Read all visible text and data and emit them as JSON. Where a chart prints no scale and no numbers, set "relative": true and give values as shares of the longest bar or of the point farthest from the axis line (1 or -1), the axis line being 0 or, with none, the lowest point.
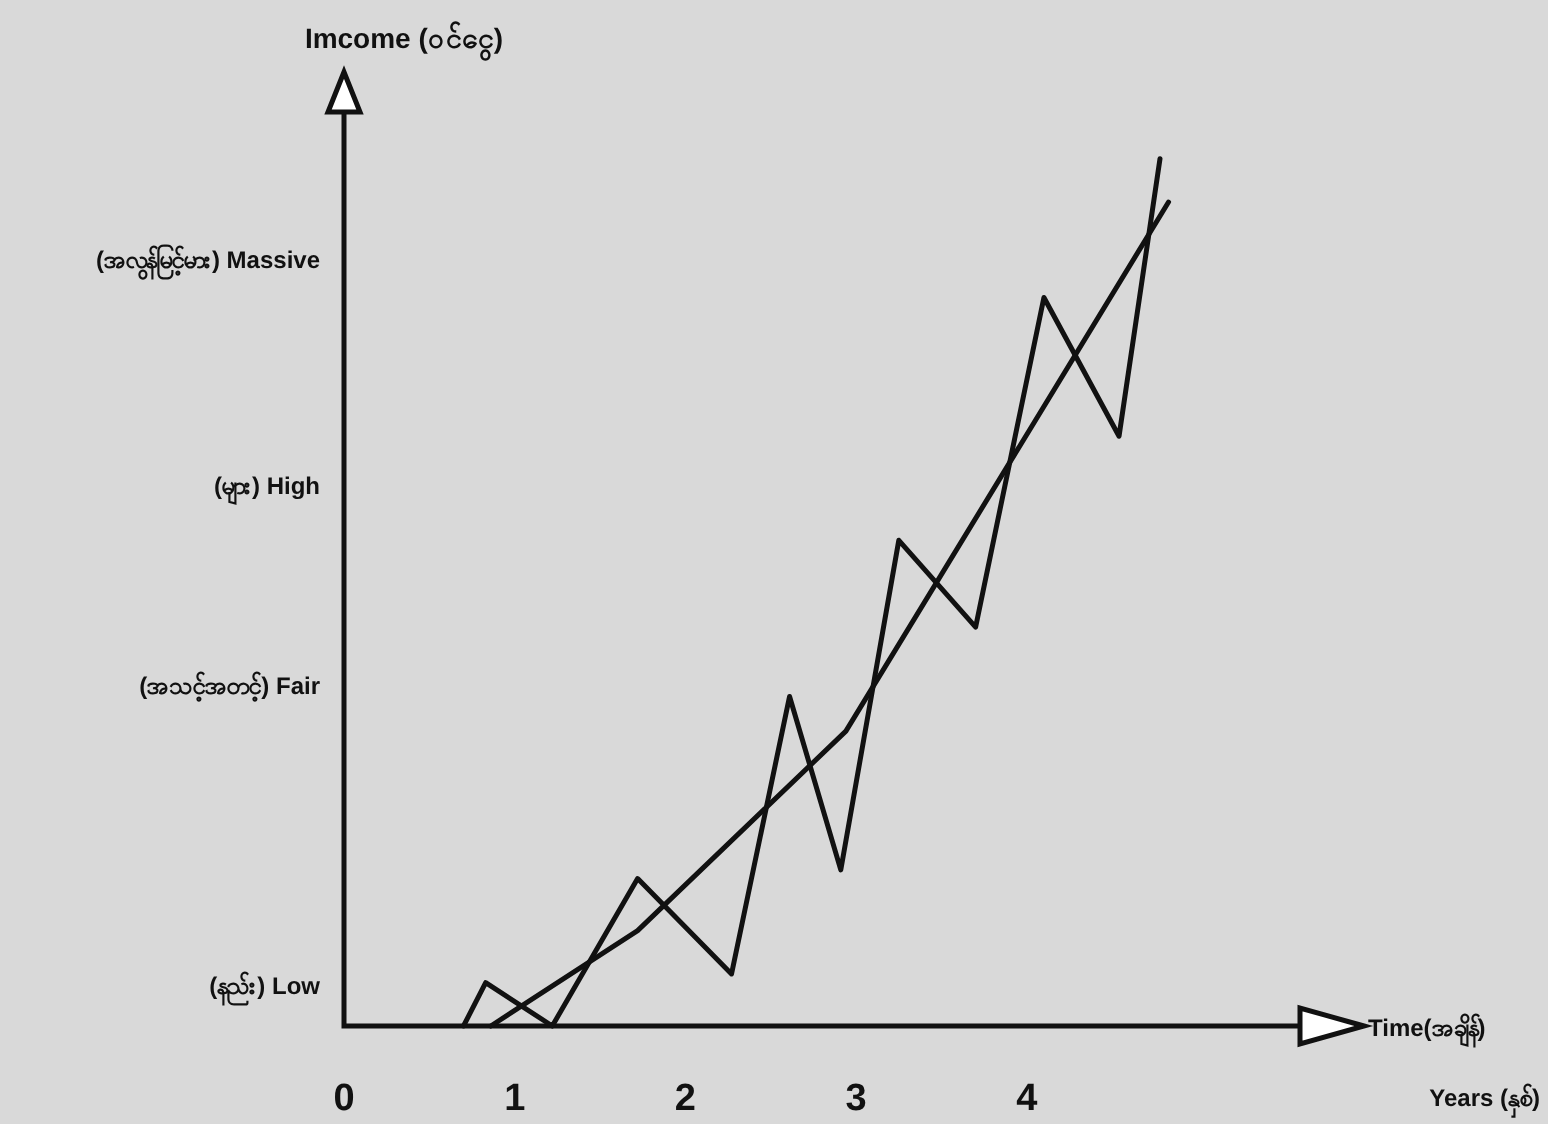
{
  "chart_data": {
    "type": "line",
    "relative": true,
    "ylabel": "Imcome (ဝင်ငွေ)",
    "xlabel": "Time(အချိန်)",
    "annotations": [
      "(နည်း) Low",
      "(အသင့်အတင့်) Fair",
      "(များ) High",
      "(အလွန်မြင့်မား) Massive",
      "Years (နှစ်)"
    ],
    "xlim": [
      0,
      5.6
    ],
    "xticks": [
      0,
      1,
      2,
      3,
      4
    ],
    "marker": "none",
    "line_style": "solid",
    "series": [
      {
        "color": "#111111",
        "x": [
          0.7,
          0.83,
          1.22,
          1.72,
          2.27,
          2.61,
          2.91,
          3.25,
          3.7,
          4.1,
          4.54,
          4.78
        ],
        "values": [
          0,
          0.05,
          0,
          0.17,
          0.06,
          0.38,
          0.18,
          0.56,
          0.46,
          0.84,
          0.68,
          1
        ]
      },
      {
        "color": "#111111",
        "x": [
          0.86,
          1.72,
          2.94,
          4.83
        ],
        "values": [
          0,
          0.11,
          0.34,
          0.95
        ]
      }
    ]
  }
}
